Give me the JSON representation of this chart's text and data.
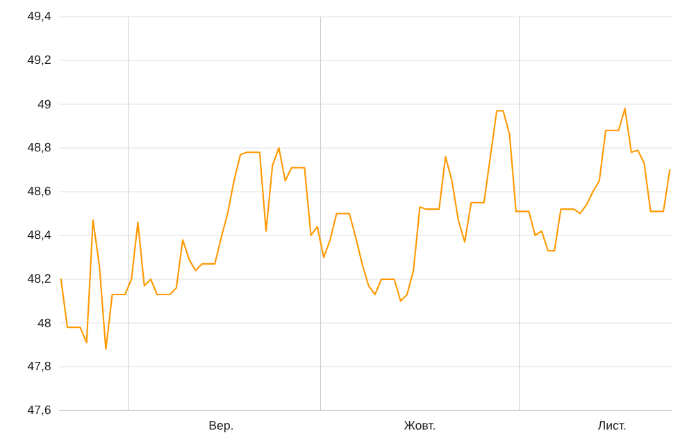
{
  "chart_data": {
    "type": "line",
    "color": "#ff9800",
    "line_style": "solid",
    "grid": "y",
    "categories": [
      null,
      null,
      null,
      null,
      null,
      null,
      null,
      null,
      null,
      null,
      null,
      null,
      null,
      null,
      null,
      null,
      null,
      null,
      null,
      null,
      null,
      null,
      null,
      null,
      null,
      "Вер.",
      null,
      null,
      null,
      null,
      null,
      null,
      null,
      null,
      null,
      null,
      null,
      null,
      null,
      null,
      null,
      null,
      null,
      null,
      null,
      null,
      null,
      null,
      null,
      null,
      null,
      null,
      null,
      null,
      null,
      null,
      "Жовт.",
      null,
      null,
      null,
      null,
      null,
      null,
      null,
      null,
      null,
      null,
      null,
      null,
      null,
      null,
      null,
      null,
      null,
      null,
      null,
      null,
      null,
      null,
      null,
      null,
      null,
      null,
      null,
      null,
      null,
      "Лист.",
      null,
      null,
      null,
      null,
      null,
      null,
      null,
      null,
      null
    ],
    "values": [
      48.2,
      47.98,
      47.98,
      47.98,
      47.91,
      48.47,
      48.26,
      47.88,
      48.13,
      48.13,
      48.13,
      48.2,
      48.46,
      48.17,
      48.2,
      48.13,
      48.13,
      48.13,
      48.16,
      48.38,
      48.29,
      48.24,
      48.27,
      48.27,
      48.27,
      48.39,
      48.5,
      48.65,
      48.77,
      48.78,
      48.78,
      48.78,
      48.42,
      48.72,
      48.8,
      48.65,
      48.71,
      48.71,
      48.71,
      48.4,
      48.44,
      48.3,
      48.38,
      48.5,
      48.5,
      48.5,
      48.39,
      48.27,
      48.17,
      48.13,
      48.2,
      48.2,
      48.2,
      48.1,
      48.13,
      48.24,
      48.53,
      48.52,
      48.52,
      48.52,
      48.76,
      48.65,
      48.47,
      48.37,
      48.55,
      48.55,
      48.55,
      48.76,
      48.97,
      48.97,
      48.86,
      48.51,
      48.51,
      48.51,
      48.4,
      48.42,
      48.33,
      48.33,
      48.52,
      48.52,
      48.52,
      48.5,
      48.54,
      48.6,
      48.65,
      48.88,
      48.88,
      48.88,
      48.98,
      48.78,
      48.79,
      48.73,
      48.51,
      48.51,
      48.51,
      48.7
    ],
    "ylim": [
      47.6,
      49.4
    ],
    "yticks": [
      {
        "value": 47.6,
        "label": "47,6"
      },
      {
        "value": 47.8,
        "label": "47,8"
      },
      48,
      {
        "value": 48.2,
        "label": "48,2"
      },
      {
        "value": 48.4,
        "label": "48,4"
      },
      {
        "value": 48.6,
        "label": "48,6"
      },
      {
        "value": 48.8,
        "label": "48,8"
      },
      49,
      {
        "value": 49.2,
        "label": "49,2"
      },
      {
        "value": 49.4,
        "label": "49,4"
      }
    ]
  }
}
